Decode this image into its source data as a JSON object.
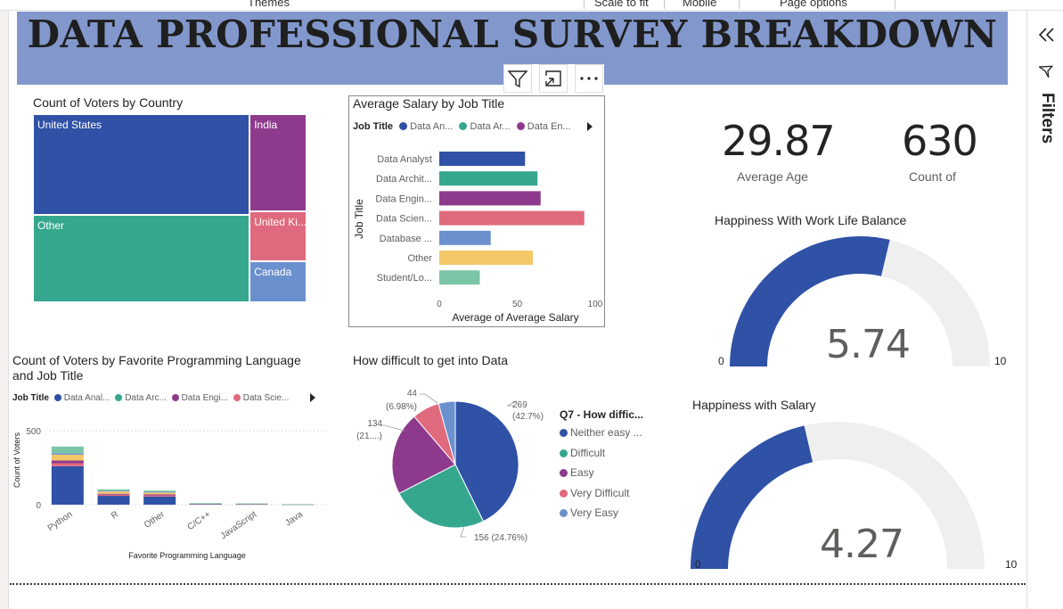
{
  "topbar": {
    "items": [
      "Themes",
      "Scale to fit",
      "Mobile",
      "Page options"
    ]
  },
  "banner": {
    "title": "DATA PROFESSIONAL SURVEY BREAKDOWN"
  },
  "visual_header": {
    "filter_icon": "filter-icon",
    "focus_icon": "focus-mode-icon",
    "more_icon": "more-options-icon"
  },
  "filters_pane": {
    "label": "Filters",
    "collapse_icon": "double-chevron-left-icon",
    "filter_icon": "filter-icon"
  },
  "kpis": [
    {
      "value": "29.87",
      "label": "Average Age"
    },
    {
      "value": "630",
      "label": "Count of"
    }
  ],
  "colors": {
    "blue": "#2f51a6",
    "teal": "#36a78f",
    "purple": "#8e3a8c",
    "pink": "#e06a7d",
    "lightblue": "#6b90ce",
    "yellow": "#f4c869",
    "mint": "#7bc6a8",
    "gaugebg": "#f0efef",
    "banner": "#8298cd"
  },
  "chart_data": [
    {
      "id": "treemap",
      "type": "treemap",
      "title": "Count of Voters by Country",
      "items": [
        {
          "label": "United States",
          "value": 262,
          "color": "#2f51a6"
        },
        {
          "label": "Other",
          "value": 226,
          "color": "#36a78f"
        },
        {
          "label": "India",
          "value": 66,
          "color": "#8e3a8c"
        },
        {
          "label": "United Ki...",
          "value": 34,
          "color": "#e06a7d"
        },
        {
          "label": "Canada",
          "value": 28,
          "color": "#6b90ce"
        }
      ]
    },
    {
      "id": "salary",
      "type": "bar",
      "orientation": "horizontal",
      "title": "Average Salary by Job Title",
      "legend_title": "Job Title",
      "legend": [
        "Data An...",
        "Data Ar...",
        "Data En..."
      ],
      "legend_colors": [
        "#2f51a6",
        "#36a78f",
        "#8e3a8c"
      ],
      "categories": [
        "Data Analyst",
        "Data Archit...",
        "Data Engin...",
        "Data Scien...",
        "Database ...",
        "Other",
        "Student/Lo..."
      ],
      "values": [
        55,
        63,
        65,
        93,
        33,
        60,
        26
      ],
      "colors": [
        "#2f51a6",
        "#36a78f",
        "#8e3a8c",
        "#e06a7d",
        "#6b90ce",
        "#f4c869",
        "#7bc6a8"
      ],
      "xlabel": "Average of Average Salary",
      "ylabel": "Job Title",
      "xlim": [
        0,
        100
      ],
      "xticks": [
        "0",
        "50",
        "100"
      ]
    },
    {
      "id": "lang",
      "type": "bar",
      "stacked": true,
      "title": "Count of Voters by Favorite Programming Language and Job Title",
      "title_lines": [
        "Count of Voters by Favorite Programming Language",
        "and Job Title"
      ],
      "legend_title": "Job Title",
      "legend": [
        "Data Anal...",
        "Data Arc...",
        "Data Engi...",
        "Data Scie..."
      ],
      "legend_colors": [
        "#2f51a6",
        "#36a78f",
        "#8e3a8c",
        "#e06a7d"
      ],
      "categories": [
        "Python",
        "R",
        "Other",
        "C/C++",
        "JavaScript",
        "Java"
      ],
      "series": [
        {
          "color": "#2f51a6",
          "values": [
            260,
            60,
            55,
            5,
            3,
            2
          ]
        },
        {
          "color": "#e06a7d",
          "values": [
            20,
            8,
            8,
            1,
            1,
            0
          ]
        },
        {
          "color": "#8e3a8c",
          "values": [
            18,
            6,
            7,
            1,
            1,
            0
          ]
        },
        {
          "color": "#f4c869",
          "values": [
            40,
            15,
            12,
            1,
            1,
            1
          ]
        },
        {
          "color": "#6b90ce",
          "values": [
            10,
            5,
            5,
            1,
            1,
            0
          ]
        },
        {
          "color": "#7bc6a8",
          "values": [
            45,
            10,
            8,
            1,
            1,
            1
          ]
        }
      ],
      "xlabel": "Favorite Programming Language",
      "ylabel": "Count of Voters",
      "ylim": [
        0,
        500
      ],
      "yticks": [
        "0",
        "500"
      ]
    },
    {
      "id": "pie",
      "type": "pie",
      "title": "How difficult to get into Data",
      "legend_title": "Q7 - How diffic...",
      "slices": [
        {
          "label": "Neither easy ...",
          "value": 269,
          "color": "#2f51a6"
        },
        {
          "label": "Difficult",
          "value": 156,
          "color": "#36a78f"
        },
        {
          "label": "Easy",
          "value": 134,
          "color": "#8e3a8c"
        },
        {
          "label": "Very Difficult",
          "value": 44,
          "color": "#e06a7d"
        },
        {
          "label": "Very Easy",
          "value": 27,
          "color": "#6b90ce"
        }
      ],
      "data_labels": [
        {
          "line1": "269",
          "line2": "(42.7%)"
        },
        {
          "line1": "156 (24.76%)",
          "line2": ""
        },
        {
          "line1": "134",
          "line2": "(21....)"
        },
        {
          "line1": "44",
          "line2": "(6.98%)"
        }
      ]
    },
    {
      "id": "gauge1",
      "type": "gauge",
      "title": "Happiness With Work Life Balance",
      "value": 5.74,
      "value_label": "5.74",
      "min": 0,
      "max": 10,
      "min_label": "0",
      "max_label": "10"
    },
    {
      "id": "gauge2",
      "type": "gauge",
      "title": "Happiness with Salary",
      "value": 4.27,
      "value_label": "4.27",
      "min": 0,
      "max": 10,
      "min_label": "0",
      "max_label": "10"
    }
  ]
}
